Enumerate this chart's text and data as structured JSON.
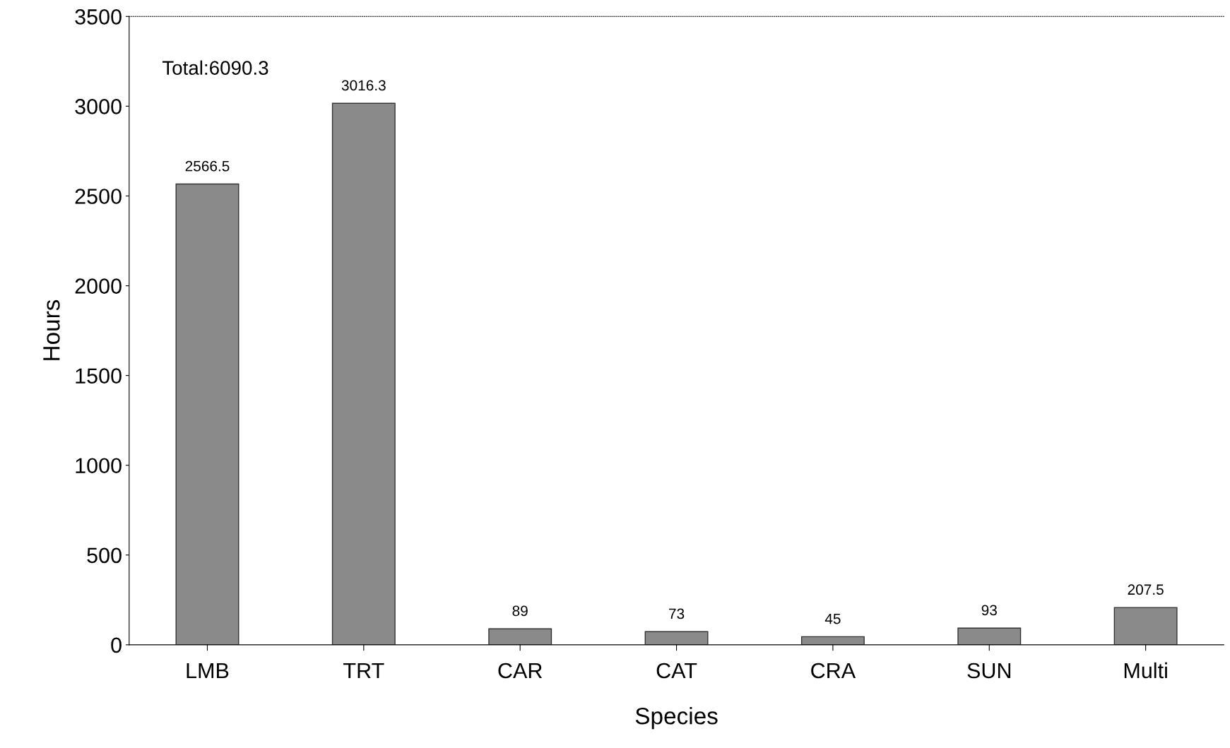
{
  "chart_data": {
    "type": "bar",
    "xlabel": "Species",
    "ylabel": "Hours",
    "categories": [
      "LMB",
      "TRT",
      "CAR",
      "CAT",
      "CRA",
      "SUN",
      "Multi"
    ],
    "values": [
      2566.5,
      3016.3,
      89,
      73,
      45,
      93,
      207.5
    ],
    "color": "#8a8a8a",
    "ylim": [
      0,
      3500
    ],
    "yticks": [
      0,
      500,
      1000,
      1500,
      2000,
      2500,
      3000,
      3500
    ],
    "data_labels": true,
    "grid": false,
    "legend": false,
    "annotations": [
      "Total:6090.3"
    ]
  }
}
